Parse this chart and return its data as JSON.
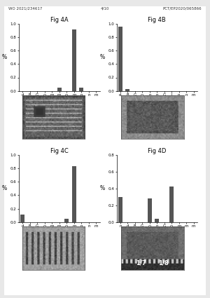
{
  "header_left": "WO 2021/234617",
  "header_center": "4/10",
  "header_right": "PCT/EP2020/065866",
  "background_color": "#e8e8e8",
  "chart_bg": "#ffffff",
  "figures": [
    {
      "title": "Fig 4A",
      "ylabel": "%",
      "ylim": [
        0,
        1.0
      ],
      "yticks": [
        0.0,
        0.2,
        0.4,
        0.6,
        0.8,
        1.0
      ],
      "categories": [
        "d",
        "B",
        "G",
        "Q",
        "m",
        "m",
        "Q",
        "m",
        "n",
        "n",
        "m"
      ],
      "values": [
        0.0,
        0.0,
        0.0,
        0.0,
        0.0,
        0.05,
        0.0,
        0.92,
        0.05,
        0.0,
        0.0
      ],
      "bar_color": "#555555"
    },
    {
      "title": "Fig 4B",
      "ylabel": "%",
      "ylim": [
        0,
        1.0
      ],
      "yticks": [
        0.0,
        0.2,
        0.4,
        0.6,
        0.8,
        1.0
      ],
      "categories": [
        "d",
        "B",
        "G",
        "Q",
        "n",
        "n",
        "G",
        "I",
        "n",
        "n",
        "m"
      ],
      "values": [
        0.96,
        0.03,
        0.0,
        0.0,
        0.0,
        0.0,
        0.0,
        0.0,
        0.0,
        0.0,
        0.0
      ],
      "bar_color": "#555555"
    },
    {
      "title": "Fig 4C",
      "ylabel": "%",
      "ylim": [
        0,
        1.0
      ],
      "yticks": [
        0.0,
        0.2,
        0.4,
        0.6,
        0.8,
        1.0
      ],
      "categories": [
        "d",
        "B",
        "G",
        "Q",
        "m",
        "m",
        "Q",
        "m",
        "n",
        "n",
        "m"
      ],
      "values": [
        0.11,
        0.0,
        0.0,
        0.0,
        0.0,
        0.0,
        0.05,
        0.83,
        0.0,
        0.0,
        0.0
      ],
      "bar_color": "#555555"
    },
    {
      "title": "Fig 4D",
      "ylabel": "%",
      "ylim": [
        0,
        0.8
      ],
      "yticks": [
        0.0,
        0.2,
        0.4,
        0.6,
        0.8
      ],
      "categories": [
        "n",
        "d",
        "B",
        "G",
        "Q",
        "n",
        "G",
        "Q",
        "m",
        "m",
        "m"
      ],
      "values": [
        0.3,
        0.0,
        0.0,
        0.0,
        0.28,
        0.04,
        0.0,
        0.42,
        0.0,
        0.0,
        0.0
      ],
      "bar_color": "#555555"
    }
  ],
  "photo_label_4D": [
    "1/7",
    "1/8"
  ],
  "title_fontsize": 6.0,
  "tick_fontsize": 4.0,
  "ylabel_fontsize": 5.5,
  "header_fontsize": 4.0
}
